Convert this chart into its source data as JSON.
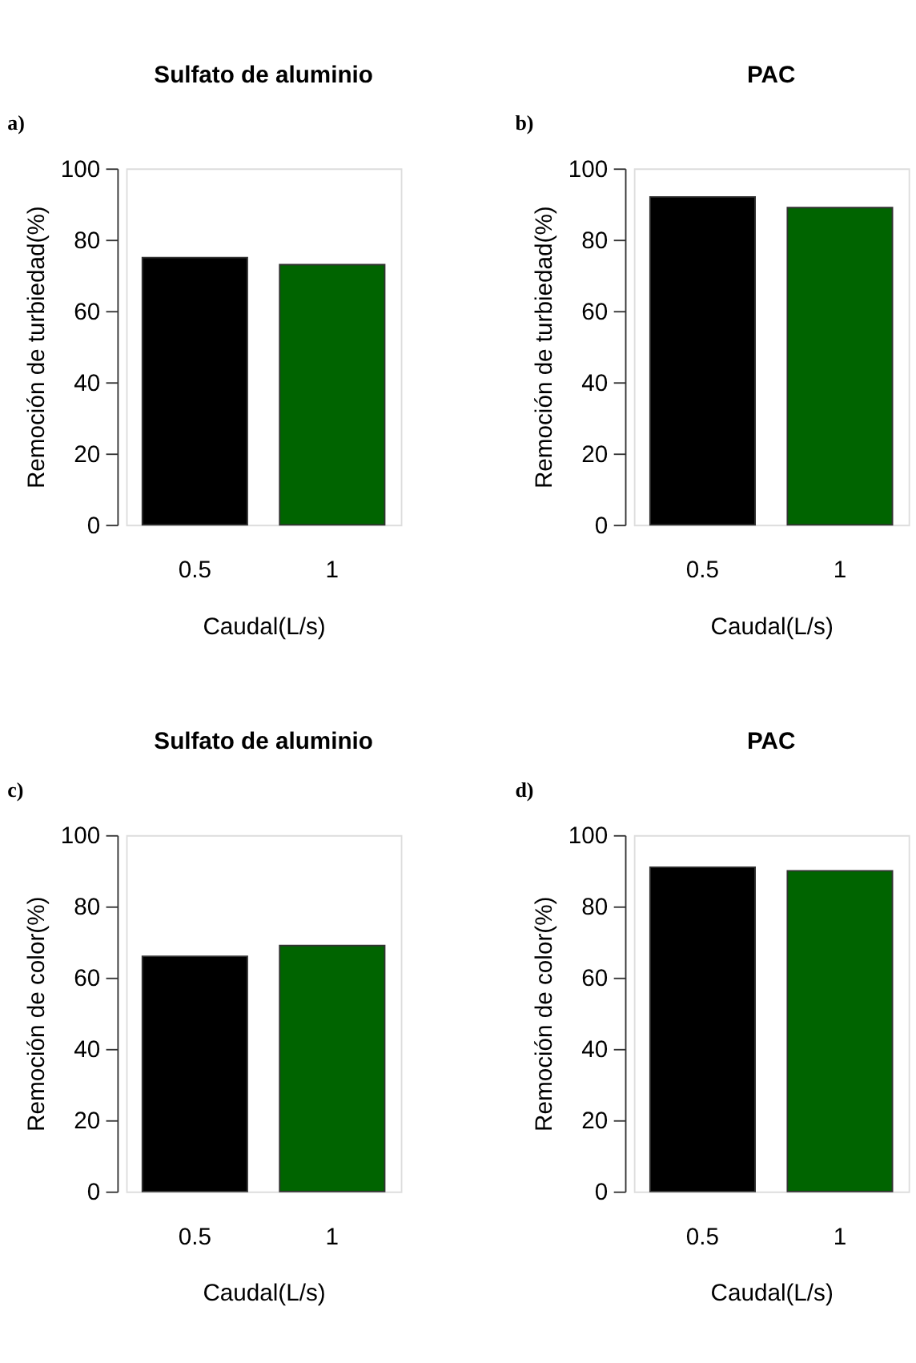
{
  "chart_data": [
    {
      "type": "bar",
      "title": "Sulfato de aluminio",
      "annotations": [
        "a)"
      ],
      "categories": [
        "0.5",
        "1"
      ],
      "values": [
        75,
        73
      ],
      "colors": [
        "#000000",
        "#006400"
      ],
      "xlabel": "Caudal(L/s)",
      "ylabel": "Remoción de turbiedad(%)",
      "ylim": [
        0,
        100
      ],
      "yticks": [
        0,
        20,
        40,
        60,
        80,
        100
      ],
      "grid": false
    },
    {
      "type": "bar",
      "title": "PAC",
      "annotations": [
        "b)"
      ],
      "categories": [
        "0.5",
        "1"
      ],
      "values": [
        92,
        89
      ],
      "colors": [
        "#000000",
        "#006400"
      ],
      "xlabel": "Caudal(L/s)",
      "ylabel": "Remoción de turbiedad(%)",
      "ylim": [
        0,
        100
      ],
      "yticks": [
        0,
        20,
        40,
        60,
        80,
        100
      ],
      "grid": false
    },
    {
      "type": "bar",
      "title": "Sulfato de aluminio",
      "annotations": [
        "c)"
      ],
      "categories": [
        "0.5",
        "1"
      ],
      "values": [
        66,
        69
      ],
      "colors": [
        "#000000",
        "#006400"
      ],
      "xlabel": "Caudal(L/s)",
      "ylabel": "Remoción de color(%)",
      "ylim": [
        0,
        100
      ],
      "yticks": [
        0,
        20,
        40,
        60,
        80,
        100
      ],
      "grid": false
    },
    {
      "type": "bar",
      "title": "PAC",
      "annotations": [
        "d)"
      ],
      "categories": [
        "0.5",
        "1"
      ],
      "values": [
        91,
        90
      ],
      "colors": [
        "#000000",
        "#006400"
      ],
      "xlabel": "Caudal(L/s)",
      "ylabel": "Remoción de color(%)",
      "ylim": [
        0,
        100
      ],
      "yticks": [
        0,
        20,
        40,
        60,
        80,
        100
      ],
      "grid": false
    }
  ]
}
